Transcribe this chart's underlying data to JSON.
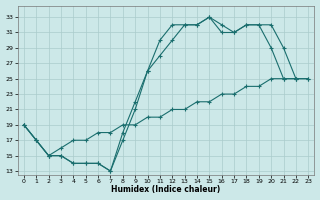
{
  "xlabel": "Humidex (Indice chaleur)",
  "bg_color": "#cce8e8",
  "grid_color": "#aacccc",
  "line_color": "#1a6e6e",
  "xlim": [
    -0.5,
    23.5
  ],
  "ylim": [
    12.5,
    34.5
  ],
  "xticks": [
    0,
    1,
    2,
    3,
    4,
    5,
    6,
    7,
    8,
    9,
    10,
    11,
    12,
    13,
    14,
    15,
    16,
    17,
    18,
    19,
    20,
    21,
    22,
    23
  ],
  "yticks": [
    13,
    15,
    17,
    19,
    21,
    23,
    25,
    27,
    29,
    31,
    33
  ],
  "line1_x": [
    0,
    1,
    2,
    3,
    4,
    5,
    6,
    7,
    8,
    9,
    10,
    11,
    12,
    13,
    14,
    15,
    16,
    17,
    18,
    19,
    20,
    21,
    22
  ],
  "line1_y": [
    19,
    17,
    15,
    15,
    14,
    14,
    14,
    13,
    18,
    22,
    26,
    28,
    30,
    32,
    32,
    33,
    31,
    31,
    32,
    32,
    29,
    25,
    25
  ],
  "line2_x": [
    0,
    1,
    2,
    3,
    4,
    5,
    6,
    7,
    8,
    9,
    10,
    11,
    12,
    13,
    14,
    15,
    16,
    17,
    18,
    19,
    20,
    21,
    22,
    23
  ],
  "line2_y": [
    19,
    17,
    15,
    15,
    14,
    14,
    14,
    13,
    17,
    21,
    26,
    30,
    32,
    32,
    32,
    33,
    32,
    31,
    32,
    32,
    32,
    29,
    25,
    25
  ],
  "line3_x": [
    0,
    1,
    2,
    3,
    4,
    5,
    6,
    7,
    8,
    9,
    10,
    11,
    12,
    13,
    14,
    15,
    16,
    17,
    18,
    19,
    20,
    21,
    22,
    23
  ],
  "line3_y": [
    19,
    17,
    15,
    16,
    17,
    17,
    18,
    18,
    19,
    19,
    20,
    20,
    21,
    21,
    22,
    22,
    23,
    23,
    24,
    24,
    25,
    25,
    25,
    25
  ]
}
